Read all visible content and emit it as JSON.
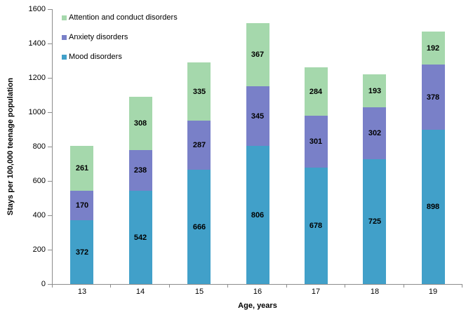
{
  "chart_data": {
    "type": "bar",
    "stacked": true,
    "categories": [
      "13",
      "14",
      "15",
      "16",
      "17",
      "18",
      "19"
    ],
    "series": [
      {
        "name": "Mood disorders",
        "color": "#41A0C9",
        "values": [
          372,
          542,
          666,
          806,
          678,
          725,
          898
        ]
      },
      {
        "name": "Anxiety disorders",
        "color": "#7980C8",
        "values": [
          170,
          238,
          287,
          345,
          301,
          302,
          378
        ]
      },
      {
        "name": "Attention and conduct disorders",
        "color": "#A5D8AC",
        "values": [
          261,
          308,
          335,
          367,
          284,
          193,
          192
        ]
      }
    ],
    "xlabel": "Age, years",
    "ylabel": "Stays per 100,000 teenage population",
    "ylim": [
      0,
      1600
    ],
    "ytick_step": 200,
    "ytick_labels": [
      "0",
      "200",
      "400",
      "600",
      "800",
      "1000",
      "1200",
      "1400",
      "1600"
    ],
    "grid": false,
    "data_labels": true,
    "legend_position": "top-left",
    "legend_order_top_to_bottom": [
      "Attention and conduct disorders",
      "Anxiety disorders",
      "Mood disorders"
    ],
    "axis_color": "#8C8C8C",
    "label_color": "#000000"
  }
}
